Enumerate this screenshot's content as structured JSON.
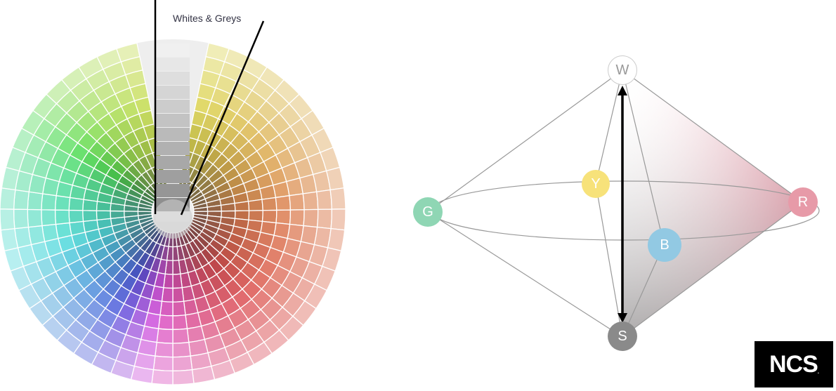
{
  "fan_caption": "Whites & Greys",
  "nodes": {
    "W": {
      "label": "W",
      "color": "#ffffff",
      "text_color": "#999999"
    },
    "Y": {
      "label": "Y",
      "color": "#f7e27a",
      "text_color": "#ffffff"
    },
    "G": {
      "label": "G",
      "color": "#8fd6b4",
      "text_color": "#ffffff"
    },
    "B": {
      "label": "B",
      "color": "#92c9e3",
      "text_color": "#ffffff"
    },
    "R": {
      "label": "R",
      "color": "#e79aa8",
      "text_color": "#ffffff"
    },
    "S": {
      "label": "S",
      "color": "#8a8a8a",
      "text_color": "#ffffff"
    }
  },
  "logo": {
    "text": "NCS",
    "mark": "."
  }
}
